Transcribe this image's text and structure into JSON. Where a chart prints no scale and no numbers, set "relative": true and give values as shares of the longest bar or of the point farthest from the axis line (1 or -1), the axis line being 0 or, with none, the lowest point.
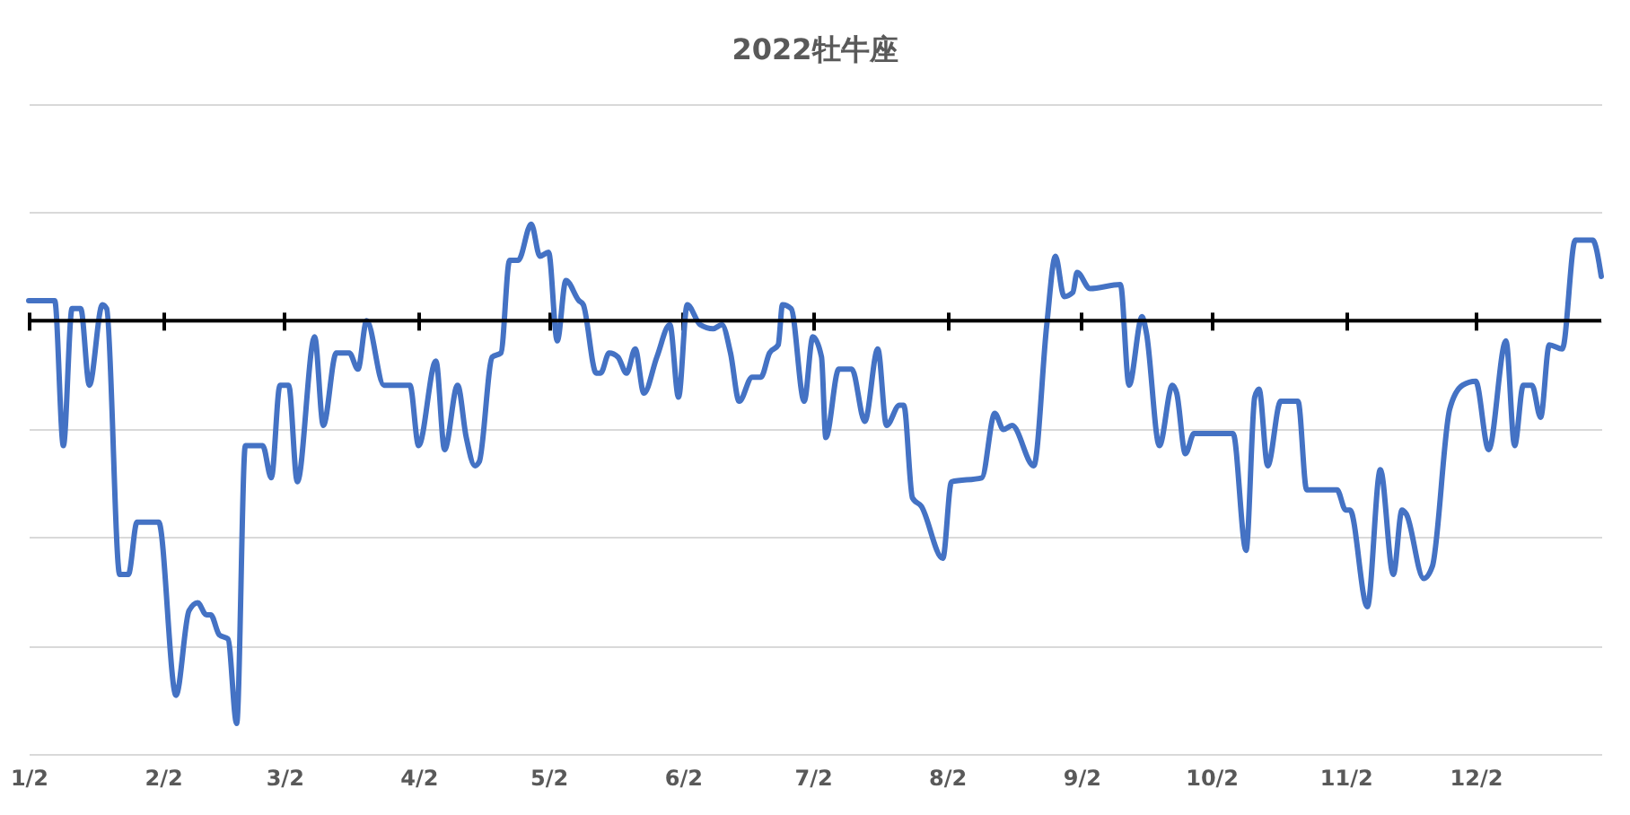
{
  "chart_data": {
    "type": "line",
    "title": "2022牡牛座",
    "relative": true,
    "grid": "y",
    "xlim": [
      "--01-02",
      "--12-31"
    ],
    "xticks": [
      {
        "value": "--01-02",
        "label": "1/2"
      },
      {
        "value": "--02-02",
        "label": "2/2"
      },
      {
        "value": "--03-02",
        "label": "3/2"
      },
      {
        "value": "--04-02",
        "label": "4/2"
      },
      {
        "value": "--05-02",
        "label": "5/2"
      },
      {
        "value": "--06-02",
        "label": "6/2"
      },
      {
        "value": "--07-02",
        "label": "7/2"
      },
      {
        "value": "--08-02",
        "label": "8/2"
      },
      {
        "value": "--09-02",
        "label": "9/2"
      },
      {
        "value": "--10-02",
        "label": "10/2"
      },
      {
        "value": "--11-02",
        "label": "11/2"
      },
      {
        "value": "--12-02",
        "label": "12/2"
      }
    ],
    "x": [
      "--01-02",
      "--01-08",
      "--01-10",
      "--01-12",
      "--01-14",
      "--01-16",
      "--01-19",
      "--01-20",
      "--01-23",
      "--01-25",
      "--01-27",
      "--02-01",
      "--02-05",
      "--02-08",
      "--02-10",
      "--02-12",
      "--02-13",
      "--02-15",
      "--02-17",
      "--02-19",
      "--02-21",
      "--02-25",
      "--02-27",
      "--03-01",
      "--03-03",
      "--03-05",
      "--03-09",
      "--03-11",
      "--03-14",
      "--03-17",
      "--03-19",
      "--03-21",
      "--03-25",
      "--03-31",
      "--04-02",
      "--04-06",
      "--04-08",
      "--04-11",
      "--04-13",
      "--04-15",
      "--04-16",
      "--04-19",
      "--04-21",
      "--04-23",
      "--04-25",
      "--04-28",
      "--04-30",
      "--05-02",
      "--05-04",
      "--05-06",
      "--05-09",
      "--05-10",
      "--05-13",
      "--05-14",
      "--05-16",
      "--05-18",
      "--05-20",
      "--05-22",
      "--05-24",
      "--05-27",
      "--05-30",
      "--06-01",
      "--06-03",
      "--06-06",
      "--06-09",
      "--06-11",
      "--06-13",
      "--06-15",
      "--06-18",
      "--06-20",
      "--06-22",
      "--06-24",
      "--06-25",
      "--06-27",
      "--06-30",
      "--07-02",
      "--07-04",
      "--07-05",
      "--07-08",
      "--07-11",
      "--07-14",
      "--07-17",
      "--07-19",
      "--07-22",
      "--07-23",
      "--07-25",
      "--07-27",
      "--08-01",
      "--08-03",
      "--08-10",
      "--08-13",
      "--08-15",
      "--08-17",
      "--08-22",
      "--08-25",
      "--08-27",
      "--08-29",
      "--08-31",
      "--09-01",
      "--09-04",
      "--09-11",
      "--09-13",
      "--09-16",
      "--09-17",
      "--09-20",
      "--09-23",
      "--09-24",
      "--09-26",
      "--09-28",
      "--10-07",
      "--10-10",
      "--10-12",
      "--10-13",
      "--10-15",
      "--10-18",
      "--10-22",
      "--10-24",
      "--10-31",
      "--11-02",
      "--11-03",
      "--11-07",
      "--11-10",
      "--11-13",
      "--11-15",
      "--11-16",
      "--11-20",
      "--11-22",
      "--11-26",
      "--11-29",
      "--12-02",
      "--12-05",
      "--12-09",
      "--12-11",
      "--12-13",
      "--12-15",
      "--12-17",
      "--12-19",
      "--12-22",
      "--12-25",
      "--12-29",
      "--12-31"
    ],
    "series": [
      {
        "color": "#4472c4",
        "values": [
          0.05,
          0.05,
          -0.31,
          0.03,
          0.03,
          -0.16,
          0.04,
          0.03,
          -0.63,
          -0.63,
          -0.5,
          -0.5,
          -0.93,
          -0.72,
          -0.7,
          -0.73,
          -0.73,
          -0.78,
          -0.79,
          -1.0,
          -0.31,
          -0.31,
          -0.39,
          -0.16,
          -0.16,
          -0.4,
          -0.04,
          -0.26,
          -0.08,
          -0.08,
          -0.12,
          0.0,
          -0.16,
          -0.16,
          -0.31,
          -0.1,
          -0.32,
          -0.16,
          -0.29,
          -0.36,
          -0.35,
          -0.09,
          -0.08,
          0.15,
          0.15,
          0.24,
          0.16,
          0.17,
          -0.05,
          0.1,
          0.05,
          0.04,
          -0.13,
          -0.13,
          -0.08,
          -0.09,
          -0.13,
          -0.07,
          -0.18,
          -0.09,
          -0.01,
          -0.19,
          0.04,
          -0.01,
          -0.02,
          -0.01,
          -0.08,
          -0.2,
          -0.14,
          -0.14,
          -0.08,
          -0.06,
          0.04,
          0.03,
          -0.2,
          -0.04,
          -0.09,
          -0.29,
          -0.12,
          -0.12,
          -0.25,
          -0.07,
          -0.26,
          -0.21,
          -0.21,
          -0.44,
          -0.46,
          -0.59,
          -0.4,
          -0.39,
          -0.23,
          -0.27,
          -0.26,
          -0.36,
          -0.01,
          0.16,
          0.06,
          0.07,
          0.12,
          0.08,
          0.09,
          -0.16,
          0.01,
          -0.03,
          -0.31,
          -0.16,
          -0.18,
          -0.33,
          -0.28,
          -0.28,
          -0.57,
          -0.19,
          -0.17,
          -0.36,
          -0.2,
          -0.2,
          -0.42,
          -0.42,
          -0.47,
          -0.47,
          -0.71,
          -0.37,
          -0.63,
          -0.47,
          -0.48,
          -0.64,
          -0.61,
          -0.22,
          -0.16,
          -0.15,
          -0.32,
          -0.05,
          -0.31,
          -0.16,
          -0.16,
          -0.24,
          -0.06,
          -0.07,
          0.2,
          0.2,
          0.11
        ]
      }
    ]
  }
}
